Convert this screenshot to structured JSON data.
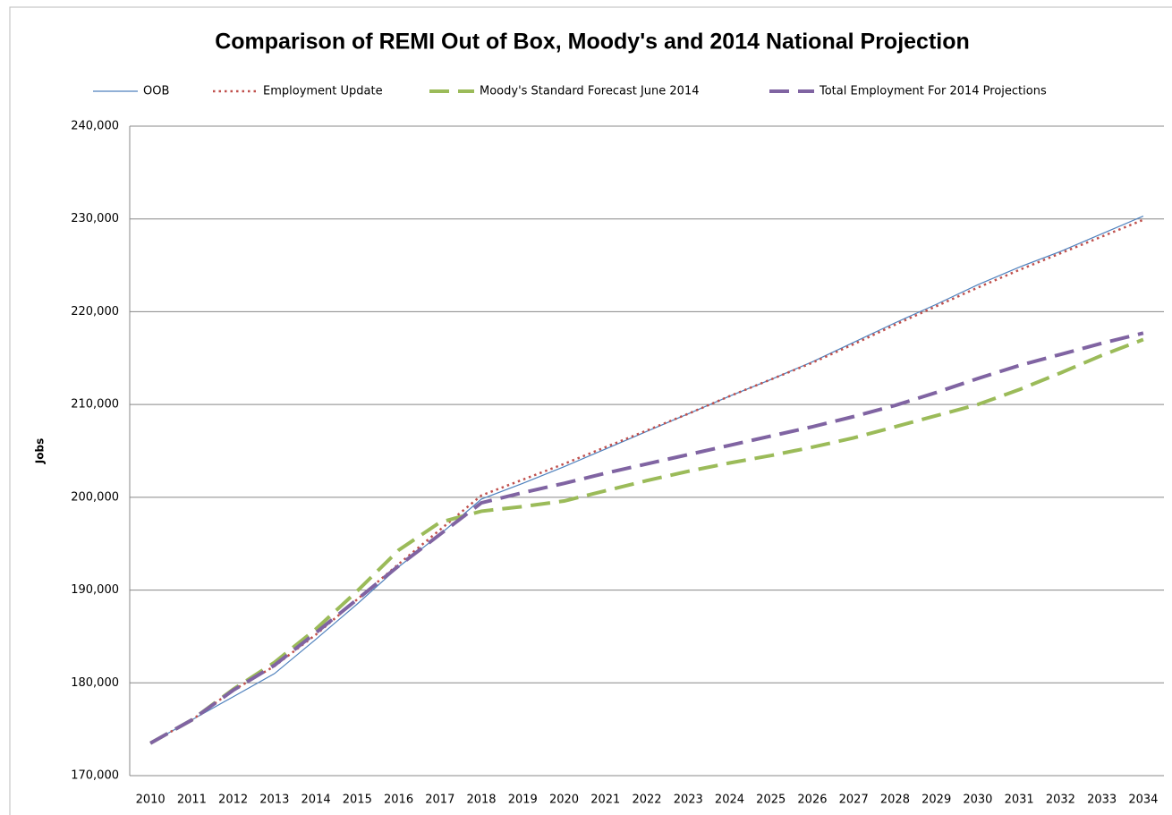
{
  "chart_data": {
    "type": "line",
    "title": "Comparison of REMI Out of Box, Moody's and 2014 National Projection",
    "ylabel": "Jobs",
    "categories": [
      "2010",
      "2011",
      "2012",
      "2013",
      "2014",
      "2015",
      "2016",
      "2017",
      "2018",
      "2019",
      "2020",
      "2021",
      "2022",
      "2023",
      "2024",
      "2025",
      "2026",
      "2027",
      "2028",
      "2029",
      "2030",
      "2031",
      "2032",
      "2033",
      "2034"
    ],
    "series": [
      {
        "name": "OOB",
        "color": "#4f81bd",
        "style": "solid",
        "values": [
          173500,
          176000,
          178500,
          181000,
          184700,
          188500,
          192500,
          196000,
          199800,
          201500,
          203300,
          205200,
          207100,
          209000,
          210900,
          212700,
          214600,
          216700,
          218800,
          220800,
          222900,
          224800,
          226500,
          228400,
          230300
        ]
      },
      {
        "name": "Employment Update",
        "color": "#c0504d",
        "style": "dotted",
        "values": [
          173500,
          176000,
          179200,
          181800,
          185200,
          189000,
          192800,
          196500,
          200200,
          201900,
          203600,
          205400,
          207200,
          209000,
          210900,
          212700,
          214500,
          216500,
          218600,
          220600,
          222600,
          224500,
          226300,
          228100,
          229900
        ]
      },
      {
        "name": "Moody's Standard Forecast June 2014",
        "color": "#9bbb59",
        "style": "dashed",
        "values": [
          173500,
          176000,
          179300,
          182200,
          185800,
          189900,
          194300,
          197300,
          198500,
          199000,
          199600,
          200700,
          201800,
          202800,
          203700,
          204500,
          205400,
          206400,
          207600,
          208800,
          210000,
          211600,
          213400,
          215300,
          217000
        ]
      },
      {
        "name": "Total Employment For 2014 Projections",
        "color": "#8064a2",
        "style": "dashed",
        "values": [
          173500,
          176000,
          179200,
          181900,
          185400,
          189000,
          192600,
          196000,
          199400,
          200500,
          201500,
          202600,
          203600,
          204600,
          205600,
          206600,
          207600,
          208700,
          209900,
          211300,
          212800,
          214200,
          215400,
          216600,
          217700
        ]
      }
    ],
    "ylim": [
      170000,
      240000
    ],
    "yticks": [
      {
        "value": 170000,
        "label": "170,000"
      },
      {
        "value": 180000,
        "label": "180,000"
      },
      {
        "value": 190000,
        "label": "190,000"
      },
      {
        "value": 200000,
        "label": "200,000"
      },
      {
        "value": 210000,
        "label": "210,000"
      },
      {
        "value": 220000,
        "label": "220,000"
      },
      {
        "value": 230000,
        "label": "230,000"
      },
      {
        "value": 240000,
        "label": "240,000"
      }
    ],
    "grid": true,
    "legend": "top"
  }
}
